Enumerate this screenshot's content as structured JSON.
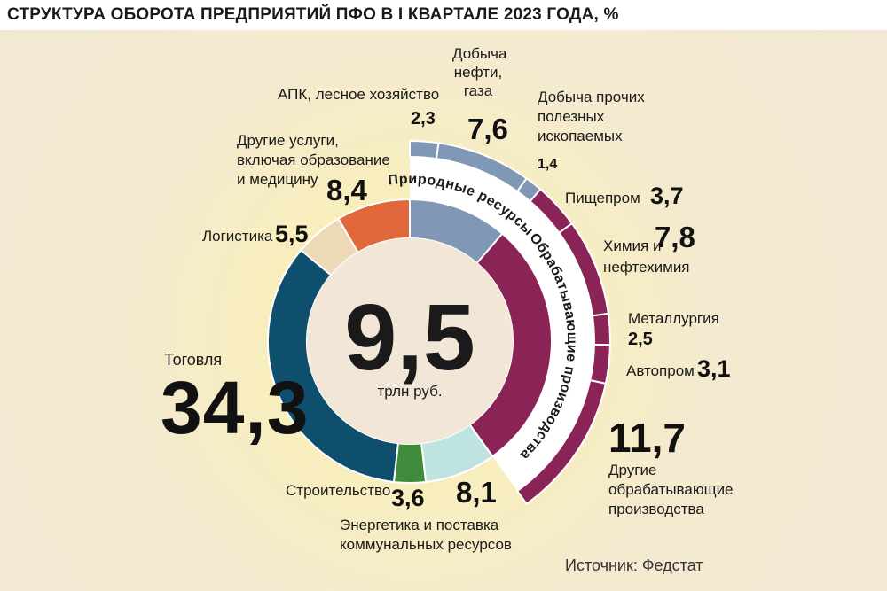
{
  "title": "СТРУКТУРА ОБОРОТА ПРЕДПРИЯТИЙ ПФО В I КВАРТАЛЕ 2023 ГОДА, %",
  "center": {
    "value": "9,5",
    "unit": "трлн руб."
  },
  "source": "Источник: Федстат",
  "groups": {
    "natural": "Природные ресурсы",
    "manufacturing": "Обрабатывающие производства"
  },
  "colors": {
    "trade": "#0f4f6e",
    "logistics": "#eed9b6",
    "services": "#e0683a",
    "natural": "#8097b6",
    "manufacturing": "#8a2356",
    "energy": "#bfe3e0",
    "construction": "#3f8b3c",
    "center": "#f2e6d6"
  },
  "labels": {
    "apk": "АПК, лесное хозяйство",
    "oil": "Добыча нефти, газа",
    "mining": "Добыча прочих полезных ископаемых",
    "food": "Пищепром",
    "chem": "Химия и нефтехимия",
    "metal": "Металлургия",
    "auto": "Автопром",
    "othermf": "Другие обрабатывающие производства",
    "services": "Другие услуги, включая образование и медицину",
    "logistics": "Логистика",
    "trade": "Тоговля",
    "construction": "Строительство",
    "energy": "Энергетика и поставка коммунальных ресурсов"
  },
  "values": {
    "apk": "2,3",
    "oil": "7,6",
    "mining": "1,4",
    "food": "3,7",
    "chem": "7,8",
    "metal": "2,5",
    "auto": "3,1",
    "othermf": "11,7",
    "services": "8,4",
    "logistics": "5,5",
    "trade": "34,3",
    "construction": "3,6",
    "energy": "8,1"
  },
  "chart_data": {
    "type": "pie",
    "title": "СТРУКТУРА ОБОРОТА ПРЕДПРИЯТИЙ ПФО В I КВАРТАЛЕ 2023 ГОДА, %",
    "total": "9,5 трлн руб.",
    "inner_ring": [
      {
        "label": "Природные ресурсы",
        "value": 11.3
      },
      {
        "label": "Обрабатывающие производства",
        "value": 28.8
      },
      {
        "label": "Энергетика и поставка коммунальных ресурсов",
        "value": 8.1
      },
      {
        "label": "Строительство",
        "value": 3.6
      },
      {
        "label": "Тоговля",
        "value": 34.3
      },
      {
        "label": "Логистика",
        "value": 5.5
      },
      {
        "label": "Другие услуги, включая образование и медицину",
        "value": 8.4
      }
    ],
    "outer_ring": [
      {
        "group": "Природные ресурсы",
        "label": "АПК, лесное хозяйство",
        "value": 2.3
      },
      {
        "group": "Природные ресурсы",
        "label": "Добыча нефти, газа",
        "value": 7.6
      },
      {
        "group": "Природные ресурсы",
        "label": "Добыча прочих полезных ископаемых",
        "value": 1.4
      },
      {
        "group": "Обрабатывающие производства",
        "label": "Пищепром",
        "value": 3.7
      },
      {
        "group": "Обрабатывающие производства",
        "label": "Химия и нефтехимия",
        "value": 7.8
      },
      {
        "group": "Обрабатывающие производства",
        "label": "Металлургия",
        "value": 2.5
      },
      {
        "group": "Обрабатывающие производства",
        "label": "Автопром",
        "value": 3.1
      },
      {
        "group": "Обрабатывающие производства",
        "label": "Другие обрабатывающие производства",
        "value": 11.7
      }
    ]
  }
}
